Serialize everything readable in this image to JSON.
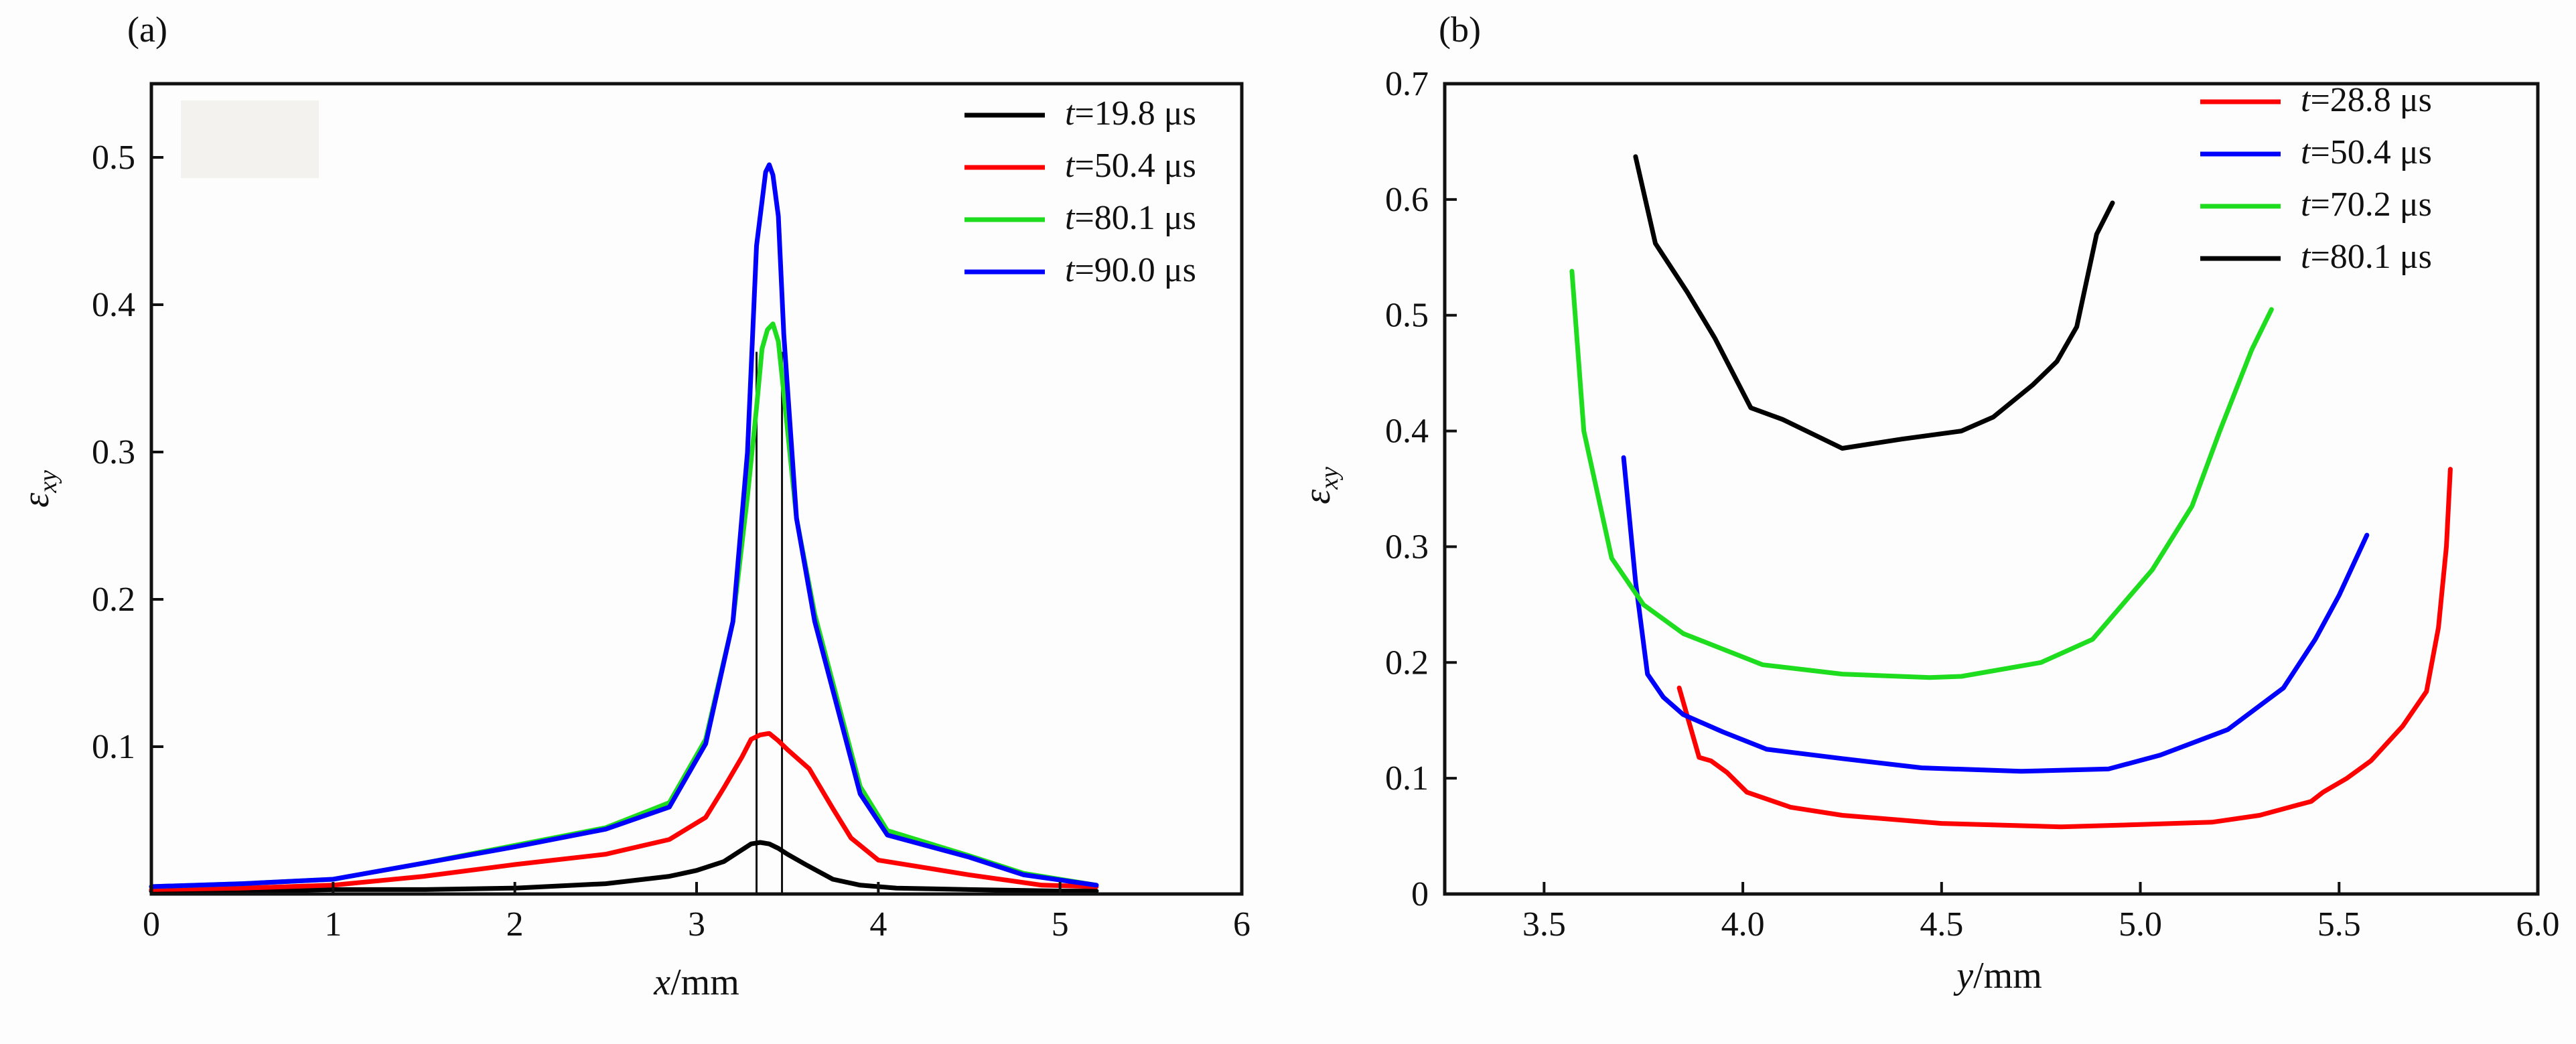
{
  "chart_data": [
    {
      "panel": "(a)",
      "type": "line",
      "xlabel": {
        "var": "x",
        "unit": "/mm"
      },
      "ylabel": {
        "var": "ε",
        "sub": "xy"
      },
      "xlim": [
        0,
        6
      ],
      "ylim": [
        0,
        0.55
      ],
      "x_ticks": [
        "0",
        "1",
        "2",
        "3",
        "4",
        "5",
        "6"
      ],
      "y_ticks": [
        "0.1",
        "0.2",
        "0.3",
        "0.4",
        "0.5"
      ],
      "y_tick_values": [
        0.1,
        0.2,
        0.3,
        0.4,
        0.5
      ],
      "legend_position": "top-right",
      "vertical_lines": [
        3.33,
        3.47
      ],
      "series": [
        {
          "name": "19.8 μs",
          "var": "t",
          "color": "#000000",
          "x": [
            0,
            0.5,
            1.0,
            1.5,
            2.0,
            2.5,
            2.85,
            3.0,
            3.15,
            3.25,
            3.3,
            3.35,
            3.4,
            3.45,
            3.5,
            3.6,
            3.75,
            3.9,
            4.1,
            4.5,
            5.0,
            5.2
          ],
          "y": [
            0.002,
            0.002,
            0.003,
            0.003,
            0.004,
            0.007,
            0.012,
            0.016,
            0.022,
            0.03,
            0.034,
            0.035,
            0.034,
            0.031,
            0.027,
            0.02,
            0.01,
            0.006,
            0.004,
            0.003,
            0.002,
            0.002
          ]
        },
        {
          "name": "50.4 μs",
          "var": "t",
          "color": "#ff0000",
          "x": [
            0,
            0.5,
            1.0,
            1.5,
            2.0,
            2.5,
            2.85,
            3.05,
            3.15,
            3.25,
            3.3,
            3.35,
            3.4,
            3.45,
            3.5,
            3.62,
            3.75,
            3.85,
            4.0,
            4.5,
            4.9,
            5.2
          ],
          "y": [
            0.003,
            0.004,
            0.006,
            0.012,
            0.02,
            0.027,
            0.037,
            0.052,
            0.072,
            0.093,
            0.105,
            0.108,
            0.109,
            0.104,
            0.098,
            0.085,
            0.058,
            0.038,
            0.023,
            0.013,
            0.006,
            0.005
          ]
        },
        {
          "name": "80.1 μs",
          "var": "t",
          "color": "#1edc1e",
          "x": [
            0,
            0.5,
            1.0,
            1.5,
            2.0,
            2.5,
            2.85,
            3.05,
            3.2,
            3.28,
            3.33,
            3.36,
            3.39,
            3.42,
            3.45,
            3.48,
            3.55,
            3.65,
            3.9,
            4.05,
            4.5,
            4.8,
            5.2
          ],
          "y": [
            0.005,
            0.007,
            0.01,
            0.021,
            0.033,
            0.045,
            0.062,
            0.105,
            0.185,
            0.27,
            0.33,
            0.37,
            0.383,
            0.387,
            0.375,
            0.34,
            0.255,
            0.19,
            0.073,
            0.043,
            0.026,
            0.014,
            0.006
          ]
        },
        {
          "name": "90.0 μs",
          "var": "t",
          "color": "#0000ff",
          "x": [
            0,
            0.5,
            1.0,
            1.5,
            2.0,
            2.5,
            2.85,
            3.05,
            3.2,
            3.28,
            3.33,
            3.36,
            3.38,
            3.4,
            3.42,
            3.45,
            3.48,
            3.55,
            3.65,
            3.9,
            4.05,
            4.5,
            4.8,
            5.2
          ],
          "y": [
            0.005,
            0.007,
            0.01,
            0.021,
            0.032,
            0.044,
            0.059,
            0.102,
            0.185,
            0.3,
            0.44,
            0.47,
            0.49,
            0.495,
            0.488,
            0.46,
            0.38,
            0.255,
            0.185,
            0.068,
            0.04,
            0.025,
            0.013,
            0.006
          ]
        }
      ]
    },
    {
      "panel": "(b)",
      "type": "line",
      "xlabel": {
        "var": "y",
        "unit": "/mm"
      },
      "ylabel": {
        "var": "ε",
        "sub": "xy"
      },
      "xlim": [
        3.25,
        6.0
      ],
      "ylim": [
        0,
        0.7
      ],
      "x_ticks": [
        "3.5",
        "4.0",
        "4.5",
        "5.0",
        "5.5",
        "6.0"
      ],
      "x_tick_values": [
        3.5,
        4.0,
        4.5,
        5.0,
        5.5,
        6.0
      ],
      "y_ticks": [
        "0",
        "0.1",
        "0.2",
        "0.3",
        "0.4",
        "0.5",
        "0.6",
        "0.7"
      ],
      "y_tick_values": [
        0,
        0.1,
        0.2,
        0.3,
        0.4,
        0.5,
        0.6,
        0.7
      ],
      "legend_position": "top-right",
      "series": [
        {
          "name": "28.8 μs",
          "var": "t",
          "color": "#ff0000",
          "x": [
            3.84,
            3.87,
            3.89,
            3.92,
            3.96,
            4.01,
            4.12,
            4.25,
            4.5,
            4.8,
            5.0,
            5.18,
            5.3,
            5.43,
            5.46,
            5.52,
            5.58,
            5.62,
            5.66,
            5.72,
            5.75,
            5.77,
            5.78
          ],
          "y": [
            0.178,
            0.142,
            0.118,
            0.115,
            0.105,
            0.088,
            0.075,
            0.068,
            0.061,
            0.058,
            0.06,
            0.062,
            0.068,
            0.08,
            0.088,
            0.1,
            0.115,
            0.13,
            0.145,
            0.175,
            0.23,
            0.3,
            0.367
          ]
        },
        {
          "name": "50.4 μs",
          "var": "t",
          "color": "#0000ff",
          "x": [
            3.7,
            3.73,
            3.76,
            3.8,
            3.85,
            3.95,
            4.06,
            4.25,
            4.45,
            4.7,
            4.92,
            5.05,
            5.22,
            5.36,
            5.44,
            5.5,
            5.57
          ],
          "y": [
            0.377,
            0.27,
            0.19,
            0.17,
            0.155,
            0.14,
            0.125,
            0.117,
            0.109,
            0.106,
            0.108,
            0.12,
            0.142,
            0.178,
            0.22,
            0.258,
            0.31
          ]
        },
        {
          "name": "70.2 μs",
          "var": "t",
          "color": "#1edc1e",
          "x": [
            3.57,
            3.6,
            3.67,
            3.75,
            3.85,
            4.05,
            4.25,
            4.47,
            4.55,
            4.75,
            4.88,
            5.03,
            5.13,
            5.2,
            5.28,
            5.33
          ],
          "y": [
            0.538,
            0.4,
            0.29,
            0.25,
            0.225,
            0.198,
            0.19,
            0.187,
            0.188,
            0.2,
            0.22,
            0.28,
            0.335,
            0.4,
            0.47,
            0.505
          ]
        },
        {
          "name": "80.1 μs",
          "var": "t",
          "color": "#000000",
          "x": [
            3.73,
            3.78,
            3.86,
            3.93,
            4.02,
            4.1,
            4.25,
            4.4,
            4.55,
            4.63,
            4.73,
            4.79,
            4.84,
            4.89,
            4.93
          ],
          "y": [
            0.637,
            0.562,
            0.52,
            0.48,
            0.42,
            0.41,
            0.385,
            0.393,
            0.4,
            0.412,
            0.44,
            0.46,
            0.49,
            0.57,
            0.597
          ]
        }
      ]
    }
  ]
}
